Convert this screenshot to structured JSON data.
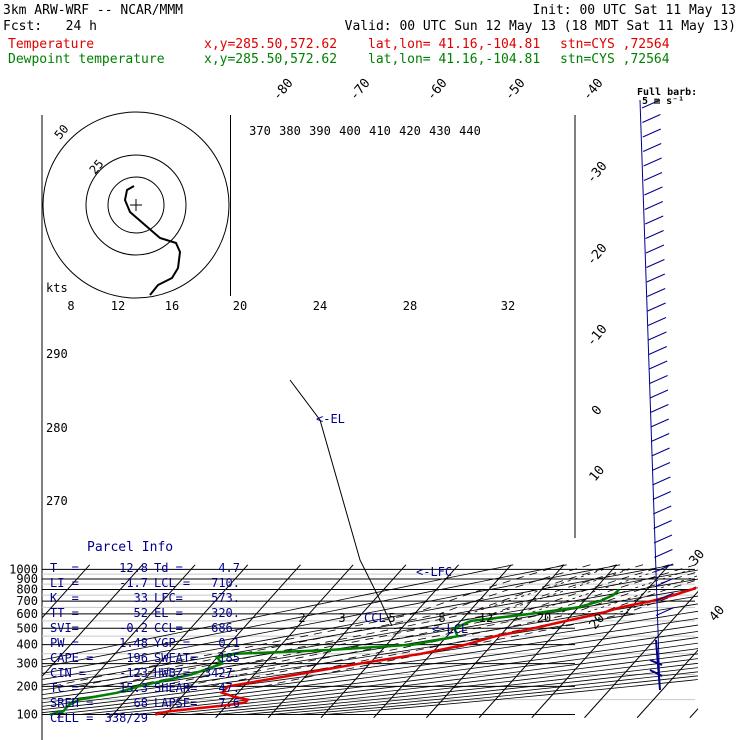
{
  "header": {
    "model": "3km ARW-WRF -- NCAR/MMM",
    "init": "Init: 00 UTC Sat 11 May 13",
    "fcst": "Fcst:   24 h",
    "valid": "Valid: 00 UTC Sun 12 May 13 (18 MDT Sat 11 May 13)",
    "temp_label": "Temperature",
    "dew_label": "Dewpoint temperature",
    "xy": "x,y=285.50,572.62",
    "latlon": "lat,lon= 41.16,-104.81",
    "stn": "stn=CYS ,72564"
  },
  "colors": {
    "temperature": "#e00000",
    "dewpoint": "#008000",
    "parcel": "#00008b",
    "hodograph": "#000000"
  },
  "chart_data": {
    "type": "line",
    "title": "",
    "pressure_levels": [
      "100",
      "200",
      "300",
      "400",
      "500",
      "600",
      "700",
      "800",
      "900",
      "1000"
    ],
    "skew_isotherm_labels": [
      "-80",
      "-70",
      "-60",
      "-50",
      "-40",
      "-30",
      "-20",
      "-10",
      "0",
      "10",
      "20",
      "30",
      "40"
    ],
    "theta_labels": [
      "370",
      "380",
      "390",
      "400",
      "410",
      "420",
      "430",
      "440"
    ],
    "theta_e_labels": [
      "290",
      "280",
      "270"
    ],
    "mixing_ratio_labels": [
      "2",
      "3",
      "5",
      "8",
      "12",
      "20"
    ],
    "hodo_labels": [
      "8",
      "12",
      "16",
      "20",
      "24",
      "28",
      "32"
    ],
    "hodo_unit": "kts",
    "hodo_rings": [
      "50",
      "25"
    ],
    "barb_label": "Full barb:",
    "barb_unit": "5 m s⁻¹",
    "markers": {
      "el": "<-EL",
      "lfc": "<-LFC",
      "lcl": "<-LCL",
      "ccl": "CCL"
    },
    "series": [
      {
        "name": "Temperature",
        "pressure": [
          812,
          750,
          700,
          650,
          600,
          550,
          500,
          450,
          400,
          350,
          300,
          250,
          200,
          175,
          160,
          150,
          140,
          130,
          120,
          110,
          100
        ],
        "temp": [
          19,
          16,
          12.8,
          8,
          5,
          0,
          -5,
          -10.8,
          -15,
          -22,
          -32,
          -42,
          -53,
          -53,
          -50,
          -47,
          -47,
          -50,
          -55,
          -60,
          -62
        ]
      },
      {
        "name": "Dewpoint temperature",
        "pressure": [
          800,
          750,
          700,
          650,
          600,
          550,
          500,
          450,
          400,
          370,
          350,
          330,
          300,
          250,
          200,
          175,
          150,
          130,
          120,
          110,
          100
        ],
        "dew": [
          4.7,
          4.5,
          3,
          0,
          -8,
          -18,
          -20,
          -18,
          -25,
          -40,
          -57,
          -60,
          -58,
          -62,
          -70,
          -73,
          -79,
          -80,
          -80,
          -80,
          -82
        ]
      }
    ]
  },
  "parcel_info": {
    "title": "Parcel Info",
    "rows": [
      [
        "T  =",
        "12.8",
        "Td =",
        "4.7"
      ],
      [
        "LI =",
        "-1.7",
        "LCL =",
        "710."
      ],
      [
        "K  =",
        "33",
        "LFC=",
        "573."
      ],
      [
        "TT =",
        "52",
        "EL =",
        "320."
      ],
      [
        "SVI=",
        "-0.2",
        "CCL=",
        "686."
      ],
      [
        "PW =",
        "1.48",
        "YGP =",
        "0.1"
      ],
      [
        "CAPE =",
        "196",
        "SWEAT=",
        "185"
      ],
      [
        "CIN =",
        "-123",
        "HWBZ=",
        "3427."
      ],
      [
        "Tc =",
        "15.3",
        "SHEAR=",
        "47."
      ],
      [
        "SREH =",
        "68",
        "LAPSE=",
        "7.6"
      ],
      [
        "CELL =",
        "338/29",
        "",
        ""
      ]
    ]
  }
}
